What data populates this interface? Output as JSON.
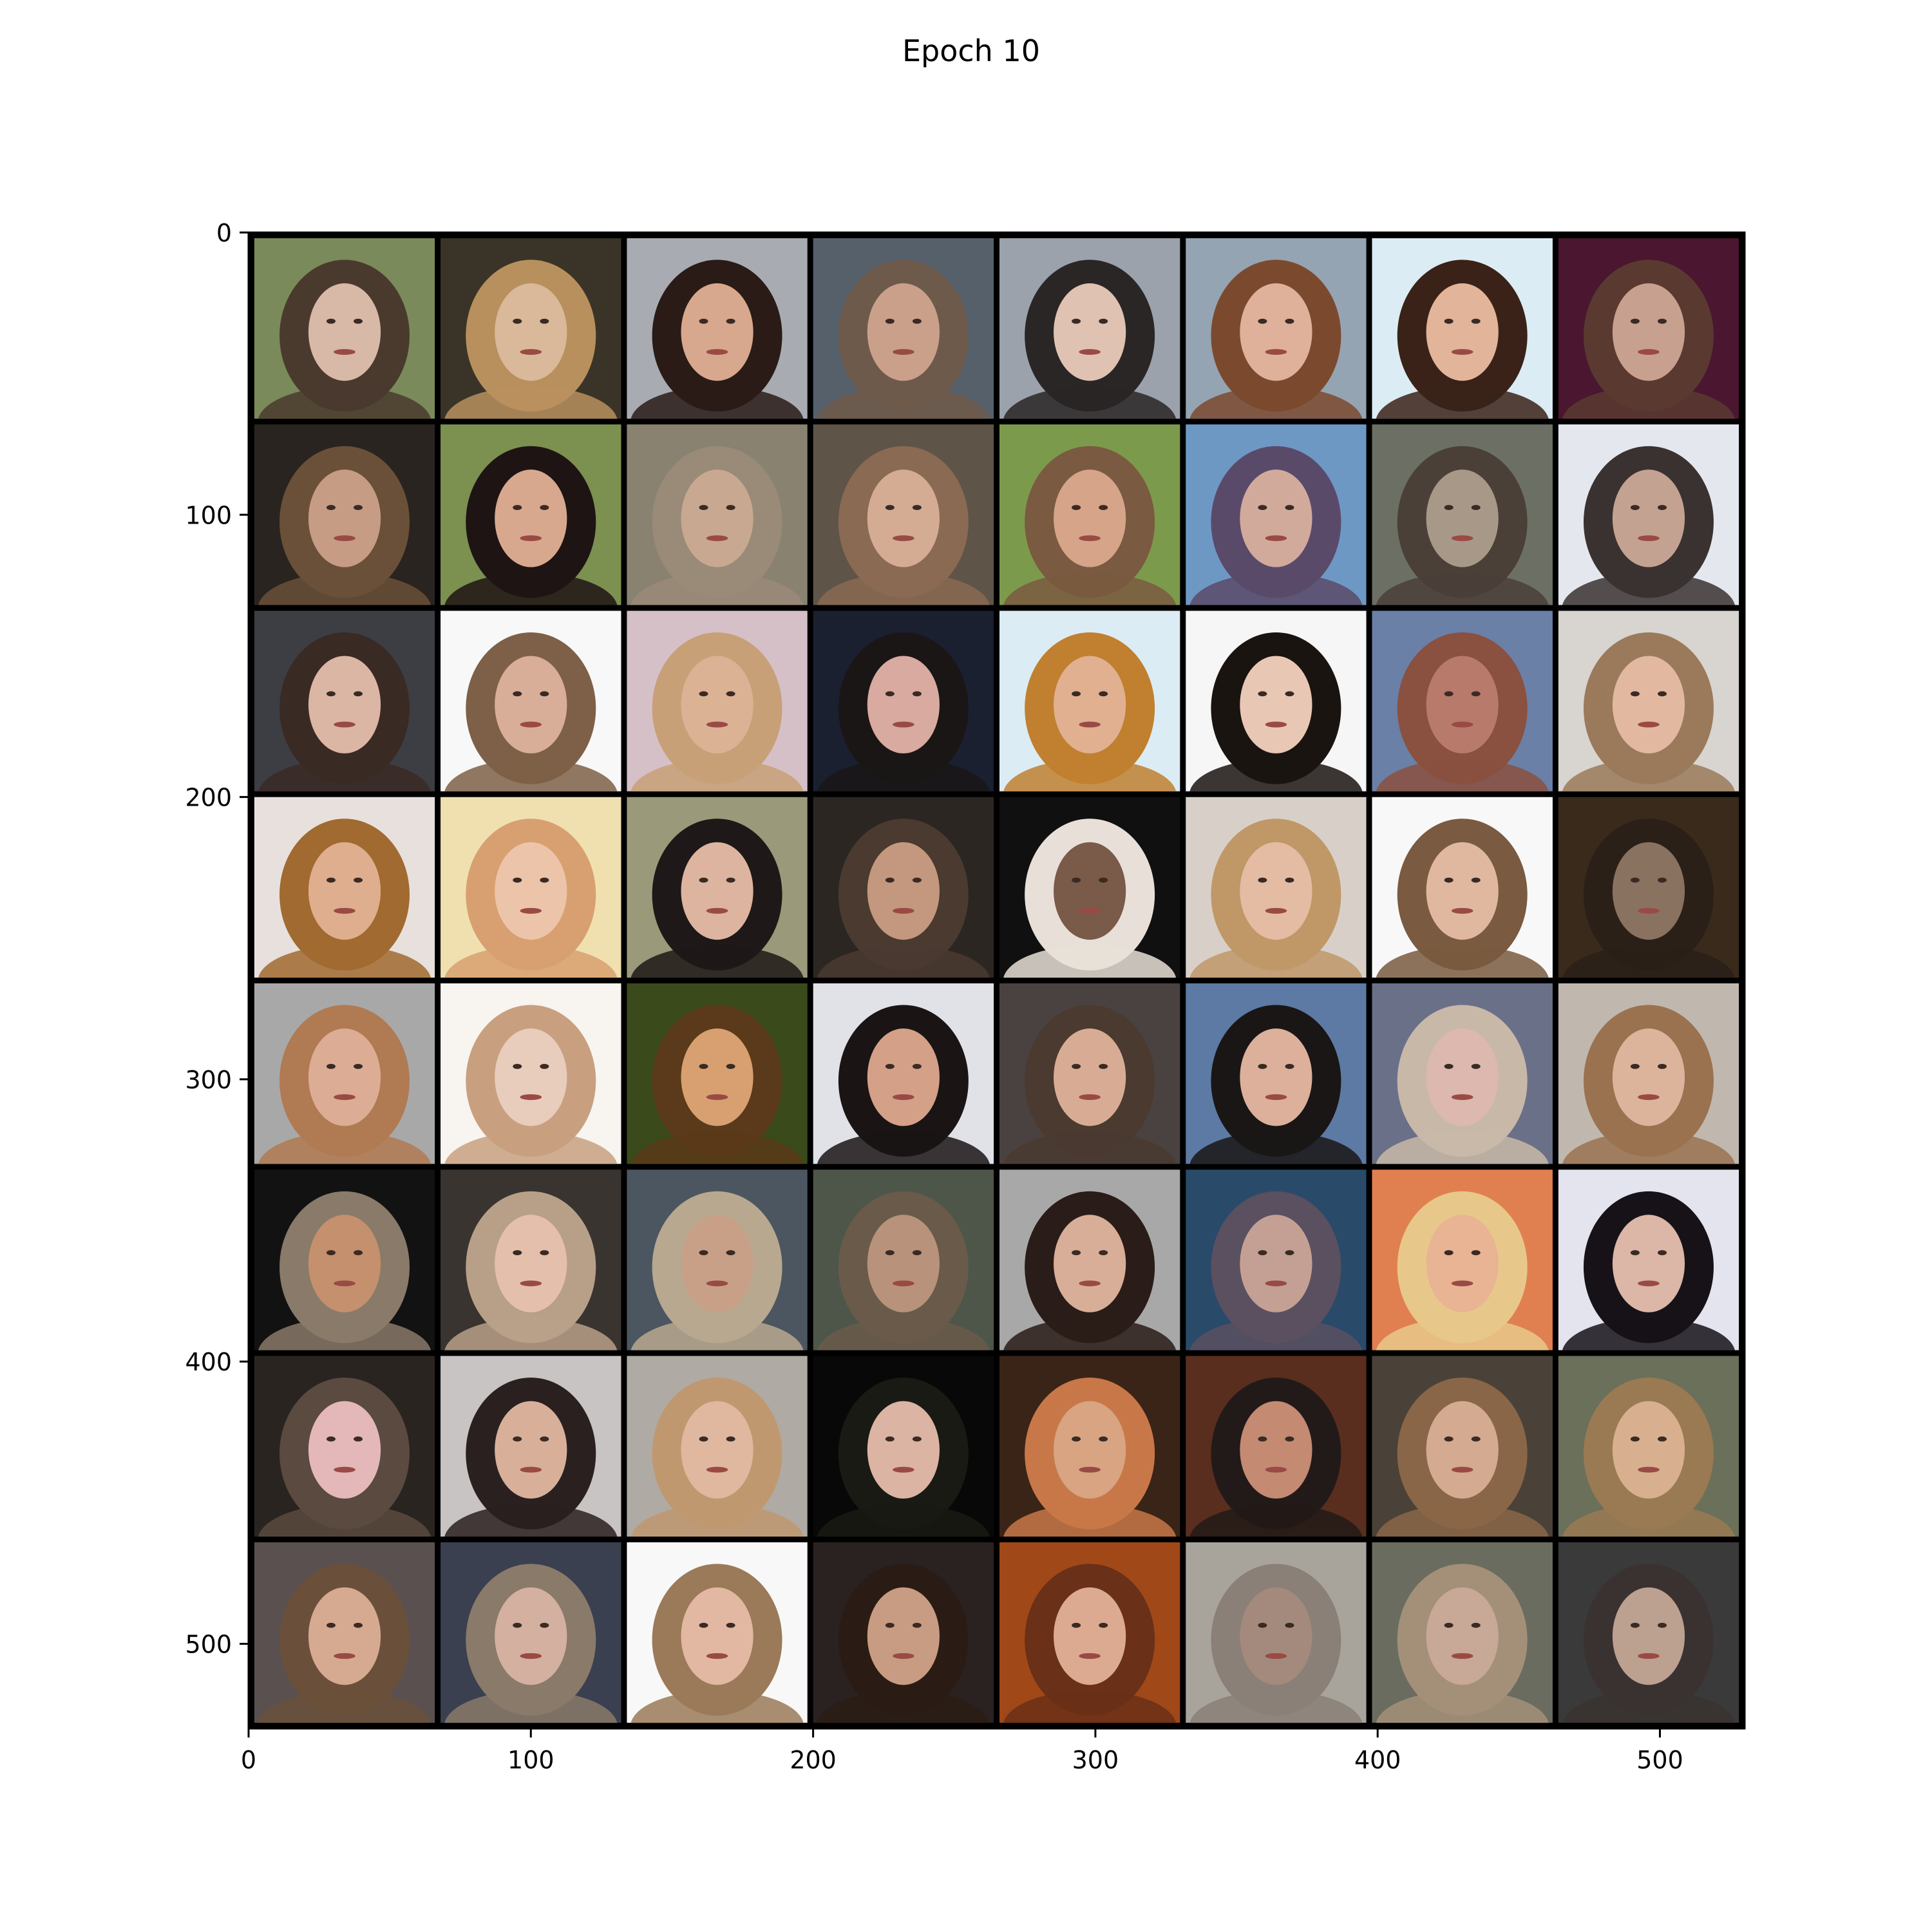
{
  "figure": {
    "title": "Epoch 10"
  },
  "axes": {
    "xlim": [
      0,
      530
    ],
    "ylim": [
      530,
      0
    ],
    "x_ticks": [
      {
        "value": 0,
        "label": "0"
      },
      {
        "value": 100,
        "label": "100"
      },
      {
        "value": 200,
        "label": "200"
      },
      {
        "value": 300,
        "label": "300"
      },
      {
        "value": 400,
        "label": "400"
      },
      {
        "value": 500,
        "label": "500"
      }
    ],
    "y_ticks": [
      {
        "value": 0,
        "label": "0"
      },
      {
        "value": 100,
        "label": "100"
      },
      {
        "value": 200,
        "label": "200"
      },
      {
        "value": 300,
        "label": "300"
      },
      {
        "value": 400,
        "label": "400"
      },
      {
        "value": 500,
        "label": "500"
      }
    ]
  },
  "image_grid": {
    "rows": 8,
    "cols": 8,
    "cell_data_size": 66,
    "padding_data": 2,
    "border_color": "#000000",
    "content": "generated face samples",
    "tiles": [
      {
        "bg": "#7a8a5a",
        "hair": "#4a3a2e",
        "skin": "#d8b8a6"
      },
      {
        "bg": "#3a3428",
        "hair": "#b8905e",
        "skin": "#d9b99a"
      },
      {
        "bg": "#a8acb2",
        "hair": "#2a1b17",
        "skin": "#d7a88e"
      },
      {
        "bg": "#56606a",
        "hair": "#6e5a4a",
        "skin": "#caa08a"
      },
      {
        "bg": "#9ca2ac",
        "hair": "#2a2626",
        "skin": "#e0c2b2"
      },
      {
        "bg": "#95a4b2",
        "hair": "#7b4a2e",
        "skin": "#dfb19a"
      },
      {
        "bg": "#dcecf4",
        "hair": "#3a2218",
        "skin": "#e2b49a"
      },
      {
        "bg": "#4a1630",
        "hair": "#5a3a30",
        "skin": "#c8a090"
      },
      {
        "bg": "#2a2420",
        "hair": "#6a5038",
        "skin": "#c69c84"
      },
      {
        "bg": "#7c9050",
        "hair": "#1e1414",
        "skin": "#d8a88e"
      },
      {
        "bg": "#8a8270",
        "hair": "#9a8a78",
        "skin": "#c8a890"
      },
      {
        "bg": "#5e5448",
        "hair": "#8a6a52",
        "skin": "#d4ac94"
      },
      {
        "bg": "#7c9a4c",
        "hair": "#7a5a40",
        "skin": "#d6a488"
      },
      {
        "bg": "#6e98c4",
        "hair": "#5a4a6a",
        "skin": "#d2aa9c"
      },
      {
        "bg": "#6c7064",
        "hair": "#4a4038",
        "skin": "#a89888"
      },
      {
        "bg": "#e4e8ee",
        "hair": "#3a3230",
        "skin": "#c4a292"
      },
      {
        "bg": "#3c3e44",
        "hair": "#3a2a24",
        "skin": "#dcb6a4"
      },
      {
        "bg": "#f8f8f8",
        "hair": "#7e6048",
        "skin": "#d9ae98"
      },
      {
        "bg": "#d6c0c8",
        "hair": "#c8a078",
        "skin": "#dcb294"
      },
      {
        "bg": "#1a2030",
        "hair": "#1a1616",
        "skin": "#d8aaa0"
      },
      {
        "bg": "#dcecf4",
        "hair": "#c08030",
        "skin": "#e0b090"
      },
      {
        "bg": "#f6f6f6",
        "hair": "#1a1410",
        "skin": "#e8c8b4"
      },
      {
        "bg": "#6a80a6",
        "hair": "#8a5040",
        "skin": "#b87a6a"
      },
      {
        "bg": "#d8d4d0",
        "hair": "#9a7a5a",
        "skin": "#e2b8a0"
      },
      {
        "bg": "#e8e0dc",
        "hair": "#a06a30",
        "skin": "#deae8e"
      },
      {
        "bg": "#f0e0b0",
        "hair": "#d8a070",
        "skin": "#ecc4aa"
      },
      {
        "bg": "#9a9a7a",
        "hair": "#1e1818",
        "skin": "#dcb4a0"
      },
      {
        "bg": "#2c2622",
        "hair": "#4a3a30",
        "skin": "#c4987e"
      },
      {
        "bg": "#101010",
        "hair": "#e8e0d8",
        "skin": "#7a5a48"
      },
      {
        "bg": "#d8d0c8",
        "hair": "#c09868",
        "skin": "#e4bca4"
      },
      {
        "bg": "#f8f8f8",
        "hair": "#7a5a40",
        "skin": "#e0b8a0"
      },
      {
        "bg": "#3a2a1c",
        "hair": "#2a2018",
        "skin": "#8a7260"
      },
      {
        "bg": "#a8a8a8",
        "hair": "#b07a52",
        "skin": "#dcac94"
      },
      {
        "bg": "#f8f4f0",
        "hair": "#c8a080",
        "skin": "#e8ccbc"
      },
      {
        "bg": "#3a4a1a",
        "hair": "#5a3a1a",
        "skin": "#d8a070"
      },
      {
        "bg": "#e0e2e8",
        "hair": "#1a1414",
        "skin": "#d4a088"
      },
      {
        "bg": "#4a4240",
        "hair": "#4a3a30",
        "skin": "#d8ac94"
      },
      {
        "bg": "#5c7aa4",
        "hair": "#1a1616",
        "skin": "#dcb09a"
      },
      {
        "bg": "#6a7088",
        "hair": "#c8b8a8",
        "skin": "#dcb8ae"
      },
      {
        "bg": "#c0b8ae",
        "hair": "#9a7250",
        "skin": "#dcb49c"
      },
      {
        "bg": "#121212",
        "hair": "#8a7a6a",
        "skin": "#c4906e"
      },
      {
        "bg": "#3a3430",
        "hair": "#b8a088",
        "skin": "#e4c0ac"
      },
      {
        "bg": "#4c5660",
        "hair": "#b8a890",
        "skin": "#c8a088"
      },
      {
        "bg": "#4e564a",
        "hair": "#6a5a4a",
        "skin": "#b8927a"
      },
      {
        "bg": "#a8a8a8",
        "hair": "#2a1c18",
        "skin": "#d8ae98"
      },
      {
        "bg": "#2a4a6a",
        "hair": "#5a5060",
        "skin": "#c4a094"
      },
      {
        "bg": "#e08050",
        "hair": "#e8c88a",
        "skin": "#e8b494"
      },
      {
        "bg": "#e4e4ee",
        "hair": "#161218",
        "skin": "#dcb6a6"
      },
      {
        "bg": "#2a2420",
        "hair": "#5a4a40",
        "skin": "#e4b8b8"
      },
      {
        "bg": "#c8c4c4",
        "hair": "#2a2020",
        "skin": "#d8b09a"
      },
      {
        "bg": "#b0aaa4",
        "hair": "#c09870",
        "skin": "#e0b8a0"
      },
      {
        "bg": "#080808",
        "hair": "#1a1a14",
        "skin": "#dcb4a4"
      },
      {
        "bg": "#3a2418",
        "hair": "#c87848",
        "skin": "#d8a482"
      },
      {
        "bg": "#5a2e1e",
        "hair": "#221a18",
        "skin": "#c48a72"
      },
      {
        "bg": "#4a4238",
        "hair": "#8a6648",
        "skin": "#d4aa90"
      },
      {
        "bg": "#6a705a",
        "hair": "#9a7a52",
        "skin": "#d8b090"
      },
      {
        "bg": "#5a5050",
        "hair": "#6a503a",
        "skin": "#d6aa90"
      },
      {
        "bg": "#3a4050",
        "hair": "#8a7a6a",
        "skin": "#d4b0a0"
      },
      {
        "bg": "#f8f8f8",
        "hair": "#9a7a58",
        "skin": "#e2b8a2"
      },
      {
        "bg": "#2a2220",
        "hair": "#2a1c14",
        "skin": "#c89c82"
      },
      {
        "bg": "#a04818",
        "hair": "#6a3018",
        "skin": "#dcaa90"
      },
      {
        "bg": "#a8a49c",
        "hair": "#8a8078",
        "skin": "#a48a7c"
      },
      {
        "bg": "#6a6c60",
        "hair": "#a49078",
        "skin": "#c8a896"
      },
      {
        "bg": "#3a3a3a",
        "hair": "#3a3230",
        "skin": "#bca090"
      }
    ]
  }
}
